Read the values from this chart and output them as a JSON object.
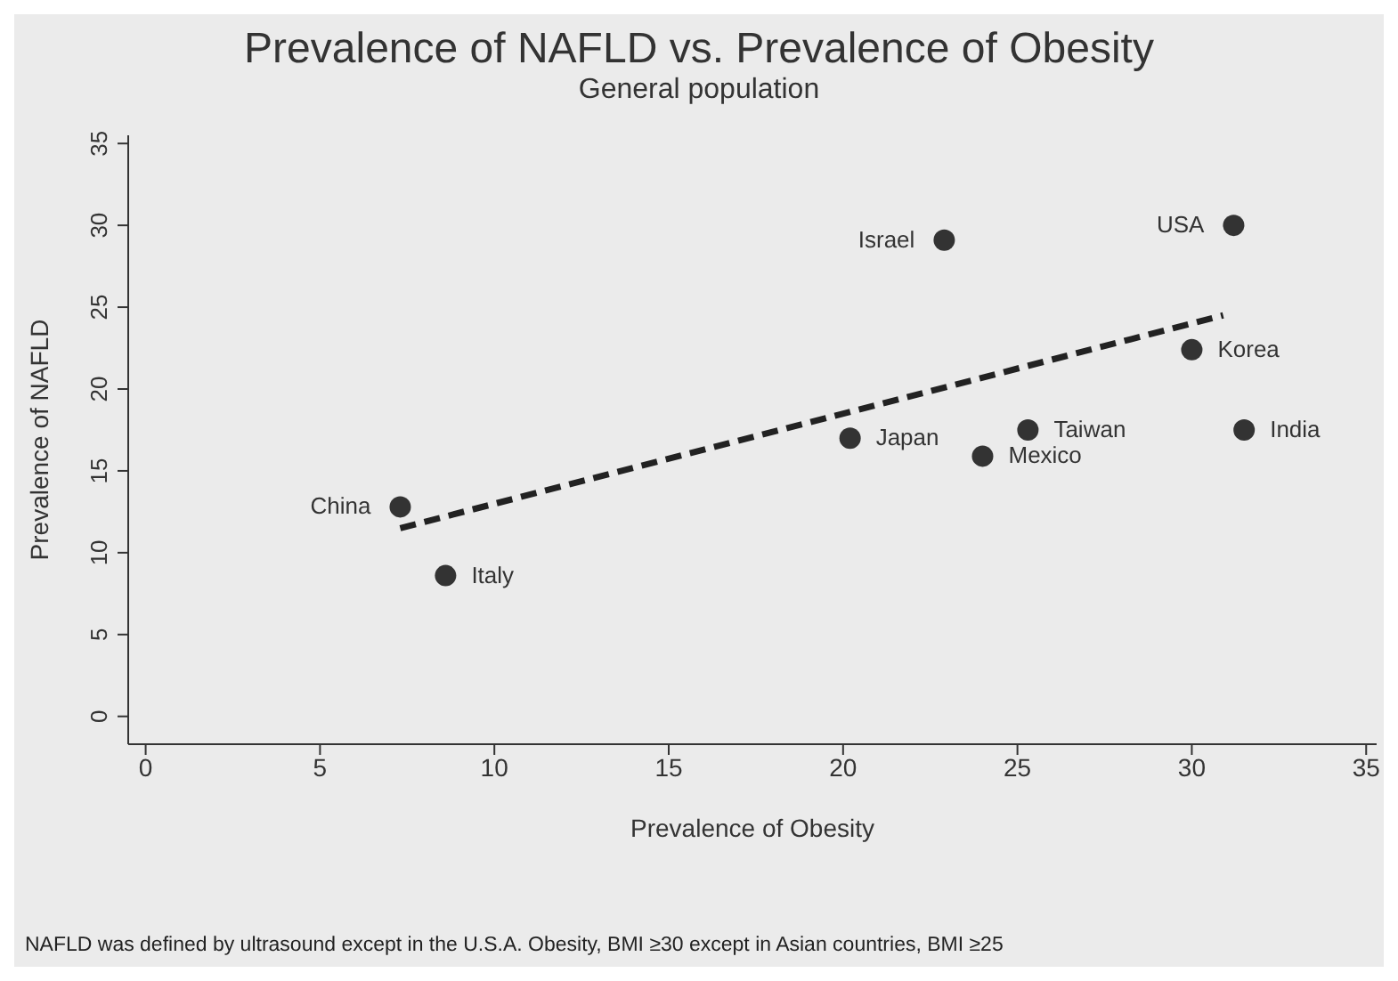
{
  "chart_data": {
    "type": "scatter",
    "title": "Prevalence of NAFLD vs. Prevalence of Obesity",
    "subtitle": "General population",
    "xlabel": "Prevalence of Obesity",
    "ylabel": "Prevalence of NAFLD",
    "xlim": [
      -0.5,
      35.3
    ],
    "ylim": [
      -1.7,
      35.5
    ],
    "xticks": [
      0,
      5,
      10,
      15,
      20,
      25,
      30,
      35
    ],
    "yticks": [
      0,
      5,
      10,
      15,
      20,
      25,
      30,
      35
    ],
    "grid": false,
    "marker": "circle",
    "series": [
      {
        "name": "China",
        "color": "#333333",
        "x": [
          7.3
        ],
        "values": [
          12.8
        ]
      },
      {
        "name": "Italy",
        "color": "#333333",
        "x": [
          8.6
        ],
        "values": [
          8.6
        ]
      },
      {
        "name": "Japan",
        "color": "#333333",
        "x": [
          20.2
        ],
        "values": [
          17.0
        ]
      },
      {
        "name": "Mexico",
        "color": "#333333",
        "x": [
          24.0
        ],
        "values": [
          15.9
        ]
      },
      {
        "name": "Taiwan",
        "color": "#333333",
        "x": [
          25.3
        ],
        "values": [
          17.5
        ]
      },
      {
        "name": "Korea",
        "color": "#333333",
        "x": [
          30.0
        ],
        "values": [
          22.4
        ]
      },
      {
        "name": "India",
        "color": "#333333",
        "x": [
          31.5
        ],
        "values": [
          17.5
        ]
      },
      {
        "name": "USA",
        "color": "#333333",
        "x": [
          31.2
        ],
        "values": [
          30.0
        ]
      },
      {
        "name": "Israel",
        "color": "#333333",
        "x": [
          22.9
        ],
        "values": [
          29.1
        ]
      },
      {
        "type": "line",
        "color": "#222222",
        "line_style": "dashed",
        "marker": "none",
        "x": [
          7.3,
          30.9
        ],
        "values": [
          11.5,
          24.5
        ]
      }
    ],
    "annotations": [
      "NAFLD was defined by ultrasound except in the U.S.A.  Obesity, BMI ≥30 except in Asian countries, BMI ≥25"
    ]
  }
}
